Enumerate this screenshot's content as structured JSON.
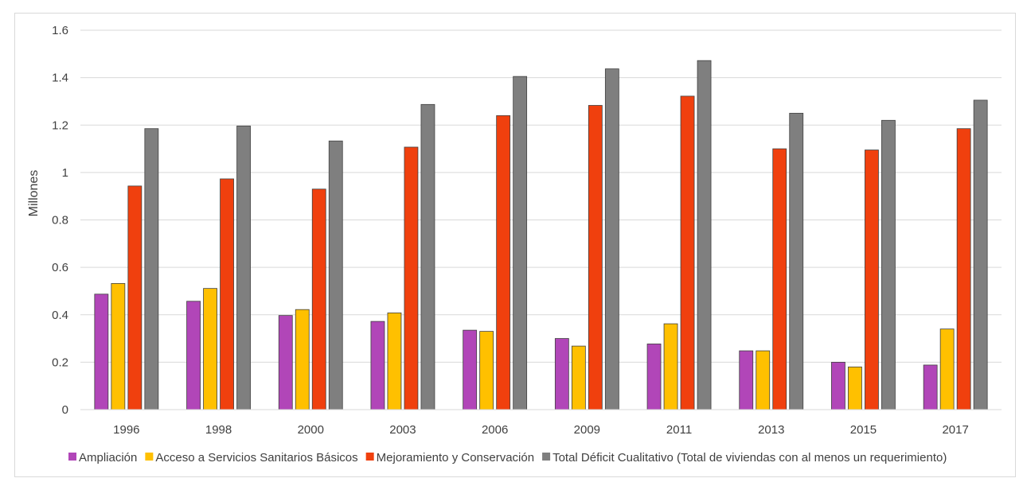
{
  "chart_data": {
    "type": "bar",
    "ylabel": "Millones",
    "ylim": [
      0,
      1.6
    ],
    "yticks": [
      "0",
      "0.2",
      "0.4",
      "0.6",
      "0.8",
      "1",
      "1.2",
      "1.4",
      "1.6"
    ],
    "categories": [
      "1996",
      "1998",
      "2000",
      "2003",
      "2006",
      "2009",
      "2011",
      "2013",
      "2015",
      "2017"
    ],
    "grid": true,
    "legend_position": "bottom",
    "series": [
      {
        "name": "Ampliación",
        "color": "#B146B8",
        "values": [
          0.487,
          0.457,
          0.397,
          0.372,
          0.335,
          0.3,
          0.277,
          0.248,
          0.2,
          0.188
        ]
      },
      {
        "name": "Acceso a Servicios Sanitarios Básicos",
        "color": "#FFC000",
        "values": [
          0.532,
          0.511,
          0.422,
          0.408,
          0.33,
          0.268,
          0.362,
          0.248,
          0.18,
          0.34
        ]
      },
      {
        "name": "Mejoramiento y Conservación",
        "color": "#F0400E",
        "values": [
          0.943,
          0.973,
          0.93,
          1.107,
          1.24,
          1.283,
          1.322,
          1.1,
          1.095,
          1.185
        ]
      },
      {
        "name": "Total Déficit Cualitativo (Total de viviendas con al menos un requerimiento)",
        "color": "#7F7F7F",
        "values": [
          1.185,
          1.196,
          1.133,
          1.287,
          1.405,
          1.437,
          1.472,
          1.25,
          1.22,
          1.305
        ]
      }
    ]
  }
}
